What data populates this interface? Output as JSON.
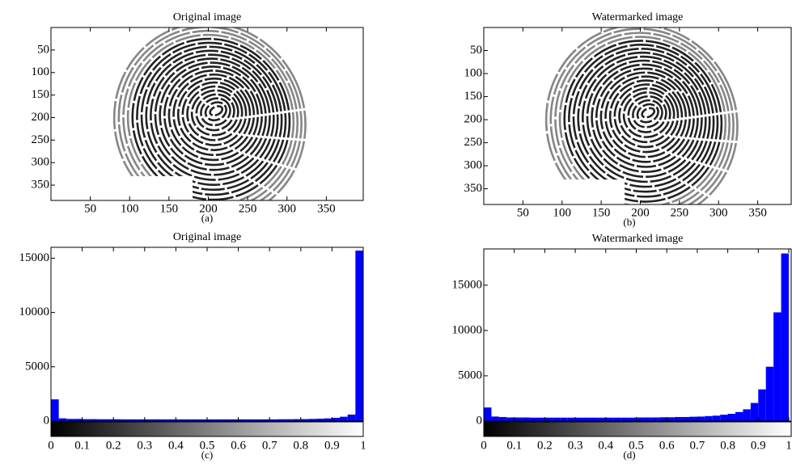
{
  "chart_data": [
    {
      "type": "image",
      "title": "Original image",
      "caption": "(a)",
      "xlim": [
        0,
        400
      ],
      "ylim": [
        0,
        384
      ],
      "yreverse": true,
      "xticks": [
        50,
        100,
        150,
        200,
        250,
        300,
        350
      ],
      "yticks": [
        50,
        100,
        150,
        200,
        250,
        300,
        350
      ]
    },
    {
      "type": "image",
      "title": "Watermarked image",
      "caption": "(b)",
      "xlim": [
        0,
        400
      ],
      "ylim": [
        0,
        384
      ],
      "yreverse": true,
      "xticks": [
        50,
        100,
        150,
        200,
        250,
        300,
        350
      ],
      "yticks": [
        50,
        100,
        150,
        200,
        250,
        300,
        350
      ]
    },
    {
      "type": "histogram",
      "title": "Original image",
      "caption": "(c)",
      "color": "#0000ff",
      "xlim": [
        0,
        1
      ],
      "ylim": [
        0,
        16000
      ],
      "xticks": [
        0,
        0.1,
        0.2,
        0.3,
        0.4,
        0.5,
        0.6,
        0.7,
        0.8,
        0.9,
        1
      ],
      "yticks": [
        0,
        5000,
        10000,
        15000
      ],
      "bins": [
        0,
        0.025,
        0.05,
        0.075,
        0.1,
        0.125,
        0.15,
        0.175,
        0.2,
        0.225,
        0.25,
        0.275,
        0.3,
        0.325,
        0.35,
        0.375,
        0.4,
        0.425,
        0.45,
        0.475,
        0.5,
        0.525,
        0.55,
        0.575,
        0.6,
        0.625,
        0.65,
        0.675,
        0.7,
        0.725,
        0.75,
        0.775,
        0.8,
        0.825,
        0.85,
        0.875,
        0.9,
        0.925,
        0.95,
        0.975,
        1
      ],
      "values": [
        2000,
        250,
        200,
        200,
        180,
        180,
        170,
        170,
        170,
        160,
        160,
        160,
        160,
        160,
        160,
        160,
        160,
        160,
        160,
        160,
        160,
        160,
        160,
        160,
        160,
        160,
        160,
        160,
        160,
        170,
        170,
        180,
        180,
        200,
        220,
        250,
        300,
        400,
        600,
        15700
      ]
    },
    {
      "type": "histogram",
      "title": "Watermarked image",
      "caption": "(d)",
      "color": "#0000ff",
      "xlim": [
        0,
        1
      ],
      "ylim": [
        0,
        19000
      ],
      "xticks": [
        0,
        0.1,
        0.2,
        0.3,
        0.4,
        0.5,
        0.6,
        0.7,
        0.8,
        0.9,
        1
      ],
      "yticks": [
        0,
        5000,
        10000,
        15000
      ],
      "bins": [
        0,
        0.025,
        0.05,
        0.075,
        0.1,
        0.125,
        0.15,
        0.175,
        0.2,
        0.225,
        0.25,
        0.275,
        0.3,
        0.325,
        0.35,
        0.375,
        0.4,
        0.425,
        0.45,
        0.475,
        0.5,
        0.525,
        0.55,
        0.575,
        0.6,
        0.625,
        0.65,
        0.675,
        0.7,
        0.725,
        0.75,
        0.775,
        0.8,
        0.825,
        0.85,
        0.875,
        0.9,
        0.925,
        0.95,
        0.975,
        1
      ],
      "values": [
        1500,
        500,
        450,
        400,
        400,
        400,
        380,
        380,
        380,
        380,
        380,
        380,
        380,
        380,
        380,
        380,
        380,
        380,
        380,
        380,
        400,
        400,
        400,
        420,
        420,
        450,
        450,
        480,
        500,
        550,
        600,
        700,
        800,
        1000,
        1300,
        2000,
        3500,
        6000,
        12000,
        18500
      ]
    }
  ]
}
